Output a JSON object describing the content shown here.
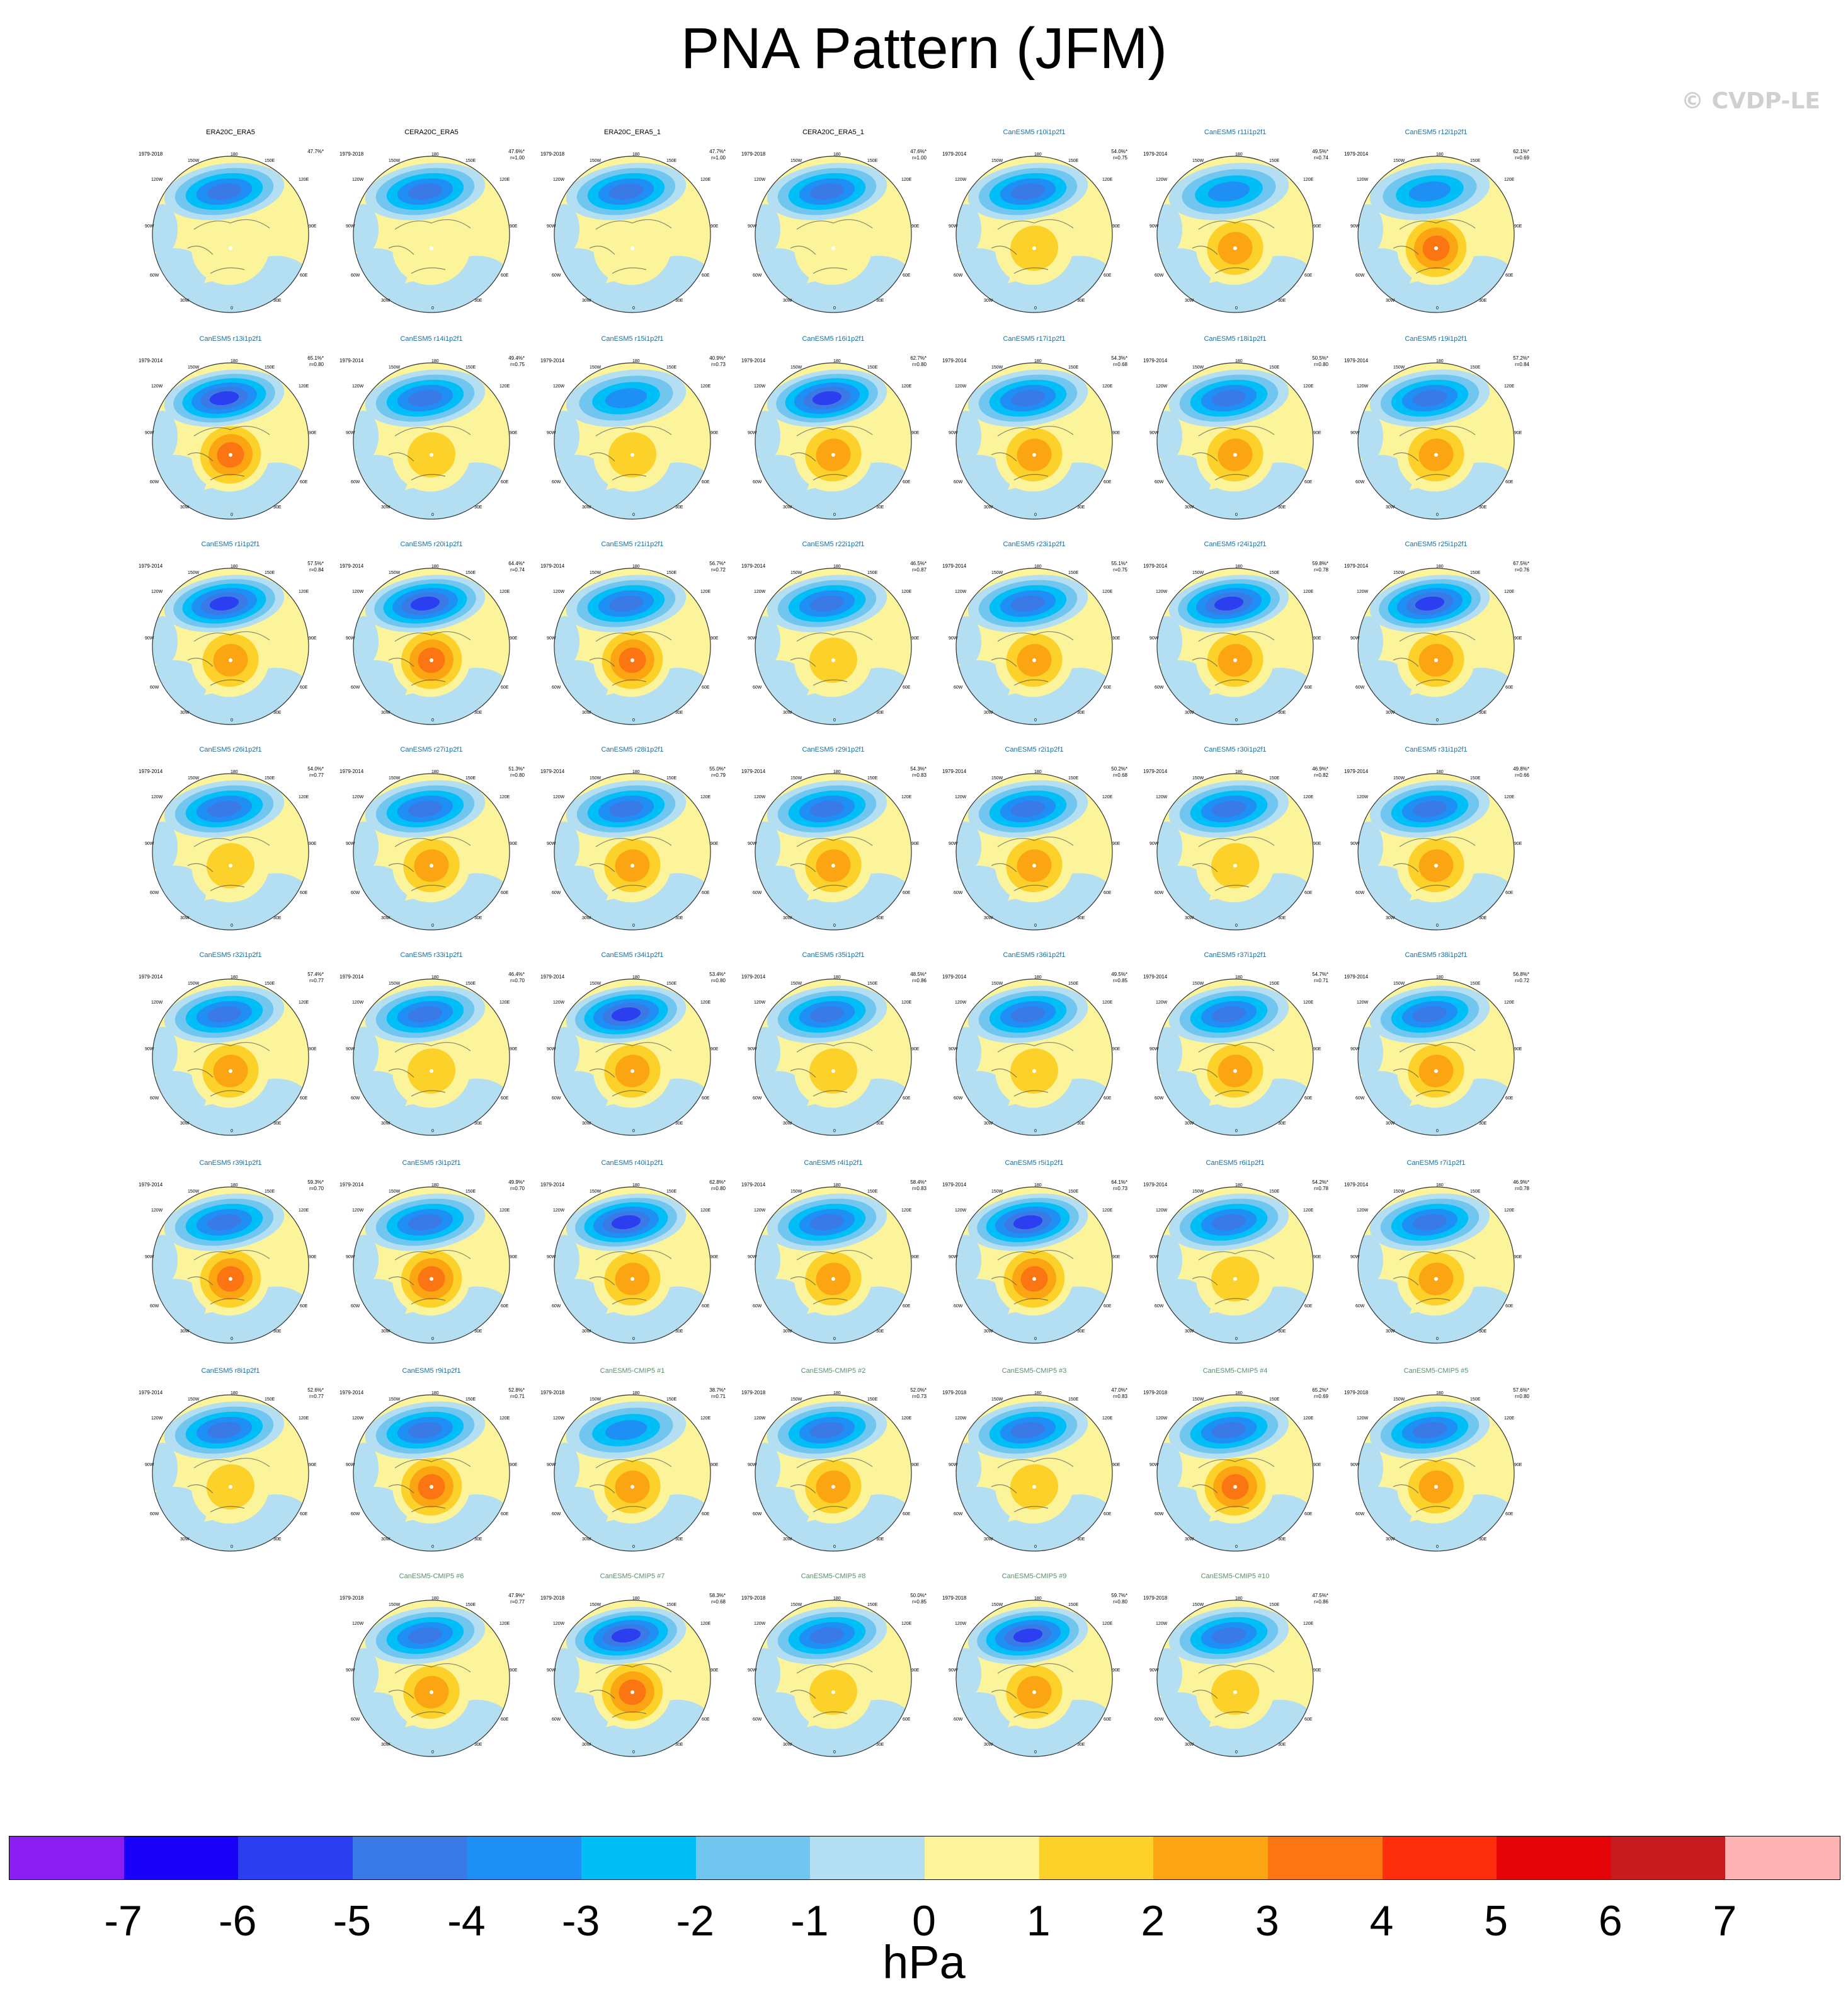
{
  "title": "PNA Pattern (JFM)",
  "watermark": "© CVDP-LE",
  "colorbar": {
    "unit": "hPa",
    "ticks": [
      "-7",
      "-6",
      "-5",
      "-4",
      "-3",
      "-2",
      "-1",
      "0",
      "1",
      "2",
      "3",
      "4",
      "5",
      "6",
      "7"
    ],
    "colors": [
      "#8a1df0",
      "#1a02f8",
      "#2b3ff0",
      "#3a7ae6",
      "#1e8ff5",
      "#00bff7",
      "#71c6f0",
      "#b4dff2",
      "#fcf49a",
      "#fbd12a",
      "#fca512",
      "#fb7613",
      "#fc2e0c",
      "#e50509",
      "#c71b1f",
      "#feb4b4"
    ],
    "levels": [
      -8,
      -7,
      -6,
      -5,
      -4,
      -3,
      -2,
      -1,
      0,
      1,
      2,
      3,
      4,
      5,
      6,
      7,
      8
    ]
  },
  "longitude_labels": [
    "180",
    "150W",
    "150E",
    "120W",
    "120E",
    "90W",
    "90E",
    "60W",
    "60E",
    "30W",
    "30E",
    "0"
  ],
  "chart_data": {
    "type": "heatmap",
    "title": "PNA Pattern (JFM)",
    "colorbar_label": "hPa",
    "colorbar_range": [
      -7,
      7
    ],
    "panels": [
      {
        "name": "ERA20C_ERA5",
        "years": "1979-2018",
        "stats": [
          "47.7%*",
          ""
        ],
        "group": "obs",
        "neg": -5.2,
        "pos": 1.3
      },
      {
        "name": "CERA20C_ERA5",
        "years": "1979-2018",
        "stats": [
          "47.6%*",
          "r=1.00"
        ],
        "group": "obs",
        "neg": -5.0,
        "pos": 1.2
      },
      {
        "name": "ERA20C_ERA5_1",
        "years": "1979-2018",
        "stats": [
          "47.7%*",
          "r=1.00"
        ],
        "group": "obs",
        "neg": -5.2,
        "pos": 1.3
      },
      {
        "name": "CERA20C_ERA5_1",
        "years": "1979-2018",
        "stats": [
          "47.6%*",
          "r=1.00"
        ],
        "group": "obs",
        "neg": -5.0,
        "pos": 1.2
      },
      {
        "name": "CanESM5 r10i1p2f1",
        "years": "1979-2014",
        "stats": [
          "54.0%*",
          "r=0.75"
        ],
        "group": "cmip6",
        "neg": -5.3,
        "pos": 2.7
      },
      {
        "name": "CanESM5 r11i1p2f1",
        "years": "1979-2014",
        "stats": [
          "49.5%*",
          "r=0.74"
        ],
        "group": "cmip6",
        "neg": -4.9,
        "pos": 3.0
      },
      {
        "name": "CanESM5 r12i1p2f1",
        "years": "1979-2014",
        "stats": [
          "62.1%*",
          "r=0.69"
        ],
        "group": "cmip6",
        "neg": -4.9,
        "pos": 4.2
      },
      {
        "name": "CanESM5 r13i1p2f1",
        "years": "1979-2014",
        "stats": [
          "65.1%*",
          "r=0.80"
        ],
        "group": "cmip6",
        "neg": -6.6,
        "pos": 4.1
      },
      {
        "name": "CanESM5 r14i1p2f1",
        "years": "1979-2014",
        "stats": [
          "49.4%*",
          "r=0.75"
        ],
        "group": "cmip6",
        "neg": -5.1,
        "pos": 2.8
      },
      {
        "name": "CanESM5 r15i1p2f1",
        "years": "1979-2014",
        "stats": [
          "40.9%*",
          "r=0.73"
        ],
        "group": "cmip6",
        "neg": -4.8,
        "pos": 2.6
      },
      {
        "name": "CanESM5 r16i1p2f1",
        "years": "1979-2014",
        "stats": [
          "62.7%*",
          "r=0.80"
        ],
        "group": "cmip6",
        "neg": -6.3,
        "pos": 3.6
      },
      {
        "name": "CanESM5 r17i1p2f1",
        "years": "1979-2014",
        "stats": [
          "54.3%*",
          "r=0.68"
        ],
        "group": "cmip6",
        "neg": -5.4,
        "pos": 3.4
      },
      {
        "name": "CanESM5 r18i1p2f1",
        "years": "1979-2014",
        "stats": [
          "50.5%*",
          "r=0.80"
        ],
        "group": "cmip6",
        "neg": -5.5,
        "pos": 3.0
      },
      {
        "name": "CanESM5 r19i1p2f1",
        "years": "1979-2014",
        "stats": [
          "57.2%*",
          "r=0.84"
        ],
        "group": "cmip6",
        "neg": -5.2,
        "pos": 3.1
      },
      {
        "name": "CanESM5 r1i1p2f1",
        "years": "1979-2014",
        "stats": [
          "57.5%*",
          "r=0.84"
        ],
        "group": "cmip6",
        "neg": -6.2,
        "pos": 3.1
      },
      {
        "name": "CanESM5 r20i1p2f1",
        "years": "1979-2014",
        "stats": [
          "64.4%*",
          "r=0.74"
        ],
        "group": "cmip6",
        "neg": -6.0,
        "pos": 4.4
      },
      {
        "name": "CanESM5 r21i1p2f1",
        "years": "1979-2014",
        "stats": [
          "56.7%*",
          "r=0.72"
        ],
        "group": "cmip6",
        "neg": -5.2,
        "pos": 4.6
      },
      {
        "name": "CanESM5 r22i1p2f1",
        "years": "1979-2014",
        "stats": [
          "46.5%*",
          "r=0.87"
        ],
        "group": "cmip6",
        "neg": -5.4,
        "pos": 2.5
      },
      {
        "name": "CanESM5 r23i1p2f1",
        "years": "1979-2014",
        "stats": [
          "55.1%*",
          "r=0.75"
        ],
        "group": "cmip6",
        "neg": -5.7,
        "pos": 3.6
      },
      {
        "name": "CanESM5 r24i1p2f1",
        "years": "1979-2014",
        "stats": [
          "59.8%*",
          "r=0.78"
        ],
        "group": "cmip6",
        "neg": -6.1,
        "pos": 3.7
      },
      {
        "name": "CanESM5 r25i1p2f1",
        "years": "1979-2014",
        "stats": [
          "67.5%*",
          "r=0.76"
        ],
        "group": "cmip6",
        "neg": -6.4,
        "pos": 3.9
      },
      {
        "name": "CanESM5 r26i1p2f1",
        "years": "1979-2014",
        "stats": [
          "54.0%*",
          "r=0.77"
        ],
        "group": "cmip6",
        "neg": -5.5,
        "pos": 2.9
      },
      {
        "name": "CanESM5 r27i1p2f1",
        "years": "1979-2014",
        "stats": [
          "51.3%*",
          "r=0.80"
        ],
        "group": "cmip6",
        "neg": -5.5,
        "pos": 3.0
      },
      {
        "name": "CanESM5 r28i1p2f1",
        "years": "1979-2014",
        "stats": [
          "55.0%*",
          "r=0.79"
        ],
        "group": "cmip6",
        "neg": -5.6,
        "pos": 3.1
      },
      {
        "name": "CanESM5 r29i1p2f1",
        "years": "1979-2014",
        "stats": [
          "54.3%*",
          "r=0.83"
        ],
        "group": "cmip6",
        "neg": -5.7,
        "pos": 3.0
      },
      {
        "name": "CanESM5 r2i1p2f1",
        "years": "1979-2014",
        "stats": [
          "50.2%*",
          "r=0.68"
        ],
        "group": "cmip6",
        "neg": -5.2,
        "pos": 3.4
      },
      {
        "name": "CanESM5 r30i1p2f1",
        "years": "1979-2014",
        "stats": [
          "46.9%*",
          "r=0.82"
        ],
        "group": "cmip6",
        "neg": -5.4,
        "pos": 2.8
      },
      {
        "name": "CanESM5 r31i1p2f1",
        "years": "1979-2014",
        "stats": [
          "49.8%*",
          "r=0.66"
        ],
        "group": "cmip6",
        "neg": -5.0,
        "pos": 3.9
      },
      {
        "name": "CanESM5 r32i1p2f1",
        "years": "1979-2014",
        "stats": [
          "57.4%*",
          "r=0.77"
        ],
        "group": "cmip6",
        "neg": -5.8,
        "pos": 3.9
      },
      {
        "name": "CanESM5 r33i1p2f1",
        "years": "1979-2014",
        "stats": [
          "46.4%*",
          "r=0.70"
        ],
        "group": "cmip6",
        "neg": -5.0,
        "pos": 2.7
      },
      {
        "name": "CanESM5 r34i1p2f1",
        "years": "1979-2014",
        "stats": [
          "53.4%*",
          "r=0.80"
        ],
        "group": "cmip6",
        "neg": -6.1,
        "pos": 3.0
      },
      {
        "name": "CanESM5 r35i1p2f1",
        "years": "1979-2014",
        "stats": [
          "48.5%*",
          "r=0.86"
        ],
        "group": "cmip6",
        "neg": -5.8,
        "pos": 2.6
      },
      {
        "name": "CanESM5 r36i1p2f1",
        "years": "1979-2014",
        "stats": [
          "49.5%*",
          "r=0.85"
        ],
        "group": "cmip6",
        "neg": -5.3,
        "pos": 2.7
      },
      {
        "name": "CanESM5 r37i1p2f1",
        "years": "1979-2014",
        "stats": [
          "54.7%*",
          "r=0.71"
        ],
        "group": "cmip6",
        "neg": -5.2,
        "pos": 3.0
      },
      {
        "name": "CanESM5 r38i1p2f1",
        "years": "1979-2014",
        "stats": [
          "56.8%*",
          "r=0.72"
        ],
        "group": "cmip6",
        "neg": -5.6,
        "pos": 3.9
      },
      {
        "name": "CanESM5 r39i1p2f1",
        "years": "1979-2014",
        "stats": [
          "59.3%*",
          "r=0.70"
        ],
        "group": "cmip6",
        "neg": -5.8,
        "pos": 4.0
      },
      {
        "name": "CanESM5 r3i1p2f1",
        "years": "1979-2014",
        "stats": [
          "49.9%*",
          "r=0.70"
        ],
        "group": "cmip6",
        "neg": -5.3,
        "pos": 4.0
      },
      {
        "name": "CanESM5 r40i1p2f1",
        "years": "1979-2014",
        "stats": [
          "62.8%*",
          "r=0.80"
        ],
        "group": "cmip6",
        "neg": -6.0,
        "pos": 3.3
      },
      {
        "name": "CanESM5 r4i1p2f1",
        "years": "1979-2014",
        "stats": [
          "58.4%*",
          "r=0.83"
        ],
        "group": "cmip6",
        "neg": -5.9,
        "pos": 3.3
      },
      {
        "name": "CanESM5 r5i1p2f1",
        "years": "1979-2014",
        "stats": [
          "64.1%*",
          "r=0.73"
        ],
        "group": "cmip6",
        "neg": -6.2,
        "pos": 4.3
      },
      {
        "name": "CanESM5 r6i1p2f1",
        "years": "1979-2014",
        "stats": [
          "54.2%*",
          "r=0.78"
        ],
        "group": "cmip6",
        "neg": -5.3,
        "pos": 2.6
      },
      {
        "name": "CanESM5 r7i1p2f1",
        "years": "1979-2014",
        "stats": [
          "46.9%*",
          "r=0.78"
        ],
        "group": "cmip6",
        "neg": -5.1,
        "pos": 3.0
      },
      {
        "name": "CanESM5 r8i1p2f1",
        "years": "1979-2014",
        "stats": [
          "52.6%*",
          "r=0.77"
        ],
        "group": "cmip6",
        "neg": -5.3,
        "pos": 2.8
      },
      {
        "name": "CanESM5 r9i1p2f1",
        "years": "1979-2014",
        "stats": [
          "52.8%*",
          "r=0.71"
        ],
        "group": "cmip6",
        "neg": -5.4,
        "pos": 4.0
      },
      {
        "name": "CanESM5-CMIP5 #1",
        "years": "1979-2018",
        "stats": [
          "38.7%*",
          "r=0.71"
        ],
        "group": "cmip5",
        "neg": -4.9,
        "pos": 3.5
      },
      {
        "name": "CanESM5-CMIP5 #2",
        "years": "1979-2018",
        "stats": [
          "52.0%*",
          "r=0.73"
        ],
        "group": "cmip5",
        "neg": -5.3,
        "pos": 3.4
      },
      {
        "name": "CanESM5-CMIP5 #3",
        "years": "1979-2018",
        "stats": [
          "47.0%*",
          "r=0.83"
        ],
        "group": "cmip5",
        "neg": -5.2,
        "pos": 2.6
      },
      {
        "name": "CanESM5-CMIP5 #4",
        "years": "1979-2018",
        "stats": [
          "65.2%*",
          "r=0.69"
        ],
        "group": "cmip5",
        "neg": -5.7,
        "pos": 4.7
      },
      {
        "name": "CanESM5-CMIP5 #5",
        "years": "1979-2018",
        "stats": [
          "57.6%*",
          "r=0.80"
        ],
        "group": "cmip5",
        "neg": -5.6,
        "pos": 3.4
      },
      {
        "name": "CanESM5-CMIP5 #6",
        "years": "1979-2018",
        "stats": [
          "47.9%*",
          "r=0.77"
        ],
        "group": "cmip5",
        "neg": -5.1,
        "pos": 3.0
      },
      {
        "name": "CanESM5-CMIP5 #7",
        "years": "1979-2018",
        "stats": [
          "58.3%*",
          "r=0.68"
        ],
        "group": "cmip5",
        "neg": -6.2,
        "pos": 4.9
      },
      {
        "name": "CanESM5-CMIP5 #8",
        "years": "1979-2018",
        "stats": [
          "50.0%*",
          "r=0.85"
        ],
        "group": "cmip5",
        "neg": -5.1,
        "pos": 2.9
      },
      {
        "name": "CanESM5-CMIP5 #9",
        "years": "1979-2018",
        "stats": [
          "59.7%*",
          "r=0.80"
        ],
        "group": "cmip5",
        "neg": -6.4,
        "pos": 3.8
      },
      {
        "name": "CanESM5-CMIP5 #10",
        "years": "1979-2018",
        "stats": [
          "47.5%*",
          "r=0.86"
        ],
        "group": "cmip5",
        "neg": -5.0,
        "pos": 2.2
      }
    ]
  }
}
